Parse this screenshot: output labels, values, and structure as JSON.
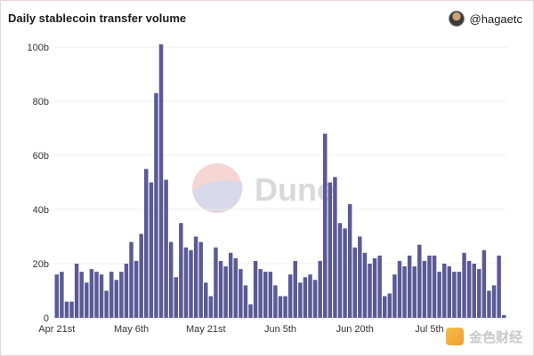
{
  "header": {
    "title": "Daily stablecoin transfer volume",
    "handle": "@hagaetc"
  },
  "watermark": {
    "text": "Dune",
    "corner_text": "金色财经"
  },
  "chart_data": {
    "type": "bar",
    "title": "Daily stablecoin transfer volume",
    "xlabel": "",
    "ylabel": "",
    "ylim": [
      0,
      100
    ],
    "y_unit": "b",
    "y_ticks": [
      0,
      20,
      40,
      60,
      80,
      100
    ],
    "y_tick_labels": [
      "0",
      "20b",
      "40b",
      "60b",
      "80b",
      "100b"
    ],
    "x_tick_labels": [
      "Apr 21st",
      "May 6th",
      "May 21st",
      "Jun 5th",
      "Jun 20th",
      "Jul 5th"
    ],
    "x_tick_indices": [
      0,
      15,
      30,
      45,
      60,
      75
    ],
    "bar_color": "#5b5996",
    "series": [
      {
        "values": [
          16,
          17,
          6,
          6,
          20,
          17,
          13,
          18,
          17,
          16,
          10,
          17,
          14,
          17,
          20,
          28,
          21,
          31,
          55,
          50,
          83,
          101,
          51,
          28,
          15,
          35,
          26,
          25,
          30,
          28,
          13,
          8,
          26,
          21,
          19,
          24,
          22,
          18,
          12,
          5,
          21,
          18,
          17,
          17,
          12,
          8,
          8,
          16,
          21,
          13,
          15,
          16,
          14,
          21,
          68,
          50,
          52,
          35,
          33,
          42,
          26,
          30,
          24,
          20,
          22,
          23,
          8,
          9,
          16,
          21,
          19,
          23,
          19,
          27,
          21,
          23,
          23,
          17,
          20,
          19,
          17,
          17,
          24,
          21,
          20,
          18,
          25,
          10,
          12,
          23,
          1
        ]
      }
    ]
  }
}
